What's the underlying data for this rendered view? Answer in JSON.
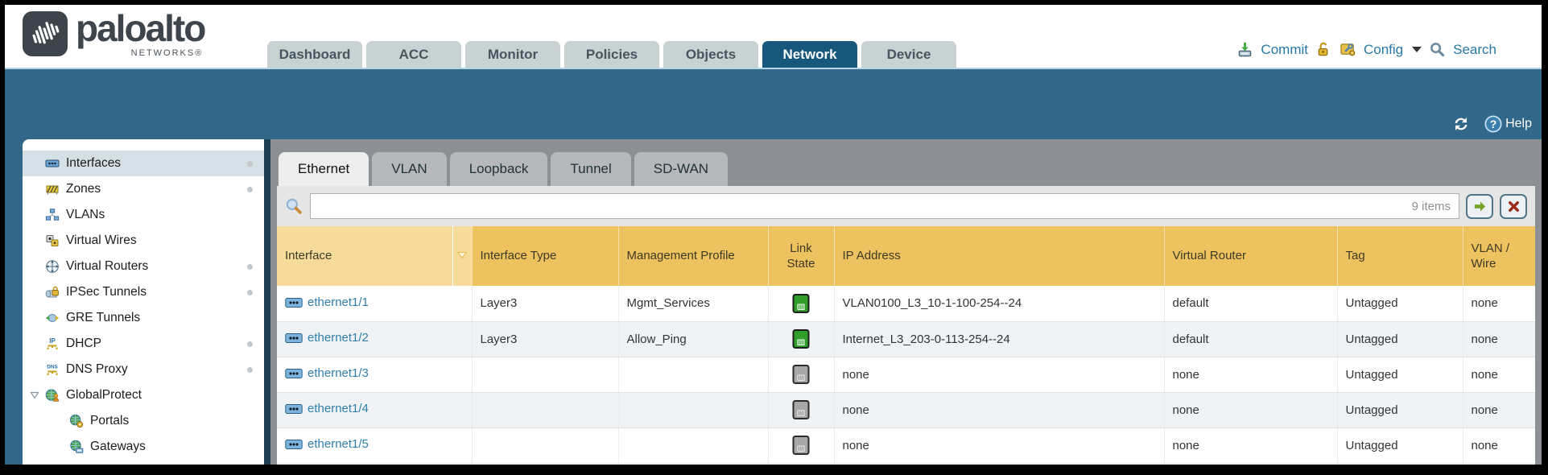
{
  "brand": {
    "logo_text": "paloalto",
    "logo_sub": "NETWORKS®"
  },
  "header": {
    "tabs": [
      {
        "label": "Dashboard",
        "active": false
      },
      {
        "label": "ACC",
        "active": false
      },
      {
        "label": "Monitor",
        "active": false
      },
      {
        "label": "Policies",
        "active": false
      },
      {
        "label": "Objects",
        "active": false
      },
      {
        "label": "Network",
        "active": true
      },
      {
        "label": "Device",
        "active": false
      }
    ],
    "actions": {
      "commit_label": "Commit",
      "config_label": "Config",
      "search_label": "Search"
    }
  },
  "toolbar": {
    "help_label": "Help"
  },
  "sidebar": {
    "items": [
      {
        "label": "Interfaces",
        "icon": "interfaces-icon",
        "selected": true,
        "dot": true,
        "indent": 0
      },
      {
        "label": "Zones",
        "icon": "zones-icon",
        "selected": false,
        "dot": true,
        "indent": 0
      },
      {
        "label": "VLANs",
        "icon": "vlans-icon",
        "selected": false,
        "dot": false,
        "indent": 0
      },
      {
        "label": "Virtual Wires",
        "icon": "virtual-wires-icon",
        "selected": false,
        "dot": false,
        "indent": 0
      },
      {
        "label": "Virtual Routers",
        "icon": "virtual-routers-icon",
        "selected": false,
        "dot": true,
        "indent": 0
      },
      {
        "label": "IPSec Tunnels",
        "icon": "ipsec-tunnels-icon",
        "selected": false,
        "dot": true,
        "indent": 0
      },
      {
        "label": "GRE Tunnels",
        "icon": "gre-tunnels-icon",
        "selected": false,
        "dot": false,
        "indent": 0
      },
      {
        "label": "DHCP",
        "icon": "dhcp-icon",
        "selected": false,
        "dot": true,
        "indent": 0
      },
      {
        "label": "DNS Proxy",
        "icon": "dns-proxy-icon",
        "selected": false,
        "dot": true,
        "indent": 0
      },
      {
        "label": "GlobalProtect",
        "icon": "globalprotect-icon",
        "selected": false,
        "dot": false,
        "indent": 0,
        "expander": true
      },
      {
        "label": "Portals",
        "icon": "portals-icon",
        "selected": false,
        "dot": false,
        "indent": 1
      },
      {
        "label": "Gateways",
        "icon": "gateways-icon",
        "selected": false,
        "dot": false,
        "indent": 1
      }
    ]
  },
  "main": {
    "subtabs": [
      {
        "label": "Ethernet",
        "active": true
      },
      {
        "label": "VLAN",
        "active": false
      },
      {
        "label": "Loopback",
        "active": false
      },
      {
        "label": "Tunnel",
        "active": false
      },
      {
        "label": "SD-WAN",
        "active": false
      }
    ],
    "search": {
      "value": "",
      "items_count": "9 items"
    }
  },
  "table": {
    "columns": [
      "Interface",
      "Interface Type",
      "Management Profile",
      "Link State",
      "IP Address",
      "Virtual Router",
      "Tag",
      "VLAN / Wire"
    ],
    "rows": [
      {
        "interface": "ethernet1/1",
        "type": "Layer3",
        "profile": "Mgmt_Services",
        "link": "up",
        "ip": "VLAN0100_L3_10-1-100-254--24",
        "router": "default",
        "tag": "Untagged",
        "vlan": "none"
      },
      {
        "interface": "ethernet1/2",
        "type": "Layer3",
        "profile": "Allow_Ping",
        "link": "up",
        "ip": "Internet_L3_203-0-113-254--24",
        "router": "default",
        "tag": "Untagged",
        "vlan": "none"
      },
      {
        "interface": "ethernet1/3",
        "type": "",
        "profile": "",
        "link": "down",
        "ip": "none",
        "router": "none",
        "tag": "Untagged",
        "vlan": "none"
      },
      {
        "interface": "ethernet1/4",
        "type": "",
        "profile": "",
        "link": "down",
        "ip": "none",
        "router": "none",
        "tag": "Untagged",
        "vlan": "none"
      },
      {
        "interface": "ethernet1/5",
        "type": "",
        "profile": "",
        "link": "down",
        "ip": "none",
        "router": "none",
        "tag": "Untagged",
        "vlan": "none"
      }
    ]
  },
  "icons": [
    "commit-icon",
    "lock-icon",
    "config-icon",
    "caret-down-icon",
    "search-icon",
    "refresh-icon",
    "help-icon",
    "filter-magnifier-icon",
    "apply-filter-icon",
    "clear-filter-icon",
    "sort-down-icon",
    "ethernet-port-icon",
    "link-up-icon",
    "link-down-icon"
  ],
  "colors": {
    "teal_bar": "#31688a",
    "active_tab": "#17577c",
    "inactive_tab": "#c8d2d3",
    "table_header_gold": "#eec25f",
    "sorted_column_gold": "#f7db9b",
    "link_up_green": "#2f9e2a",
    "link_down_gray": "#a8a8a8",
    "interface_link_blue": "#2f7fa8",
    "action_text_blue": "#2679a6"
  }
}
